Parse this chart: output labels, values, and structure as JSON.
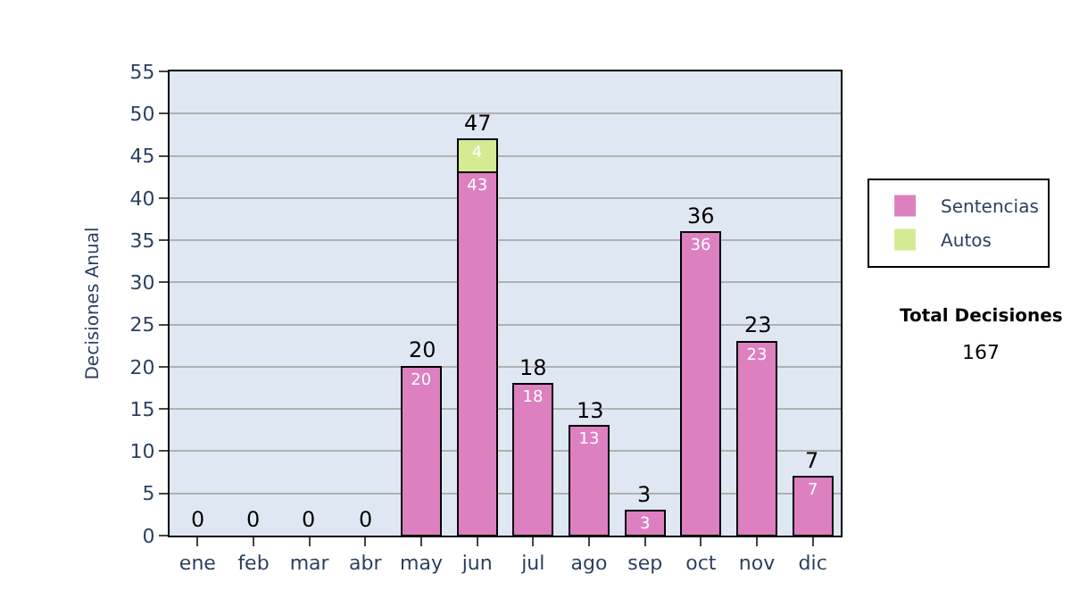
{
  "chart_data": {
    "type": "bar",
    "stacked": true,
    "ylabel": "Decisiones Anual",
    "categories": [
      "ene",
      "feb",
      "mar",
      "abr",
      "may",
      "jun",
      "jul",
      "ago",
      "sep",
      "oct",
      "nov",
      "dic"
    ],
    "series": [
      {
        "name": "Sentencias",
        "color": "#dd80c0",
        "values": [
          0,
          0,
          0,
          0,
          20,
          43,
          18,
          13,
          3,
          36,
          23,
          7
        ],
        "value_labels": [
          null,
          null,
          null,
          null,
          "20",
          "43",
          "18",
          "13",
          "3",
          "36",
          "23",
          "7"
        ]
      },
      {
        "name": "Autos",
        "color": "#d4eb94",
        "values": [
          0,
          0,
          0,
          0,
          0,
          4,
          0,
          0,
          0,
          0,
          0,
          0
        ],
        "value_labels": [
          null,
          null,
          null,
          null,
          null,
          "4",
          null,
          null,
          null,
          null,
          null,
          null
        ]
      }
    ],
    "totals": [
      "0",
      "0",
      "0",
      "0",
      "20",
      "47",
      "18",
      "13",
      "3",
      "36",
      "23",
      "7"
    ],
    "ylim": [
      0,
      55
    ],
    "yticks": [
      0,
      5,
      10,
      15,
      20,
      25,
      30,
      35,
      40,
      45,
      50,
      55
    ],
    "grid": "y",
    "legend": "right",
    "annotations": [
      "Total Decisiones",
      "167"
    ]
  }
}
